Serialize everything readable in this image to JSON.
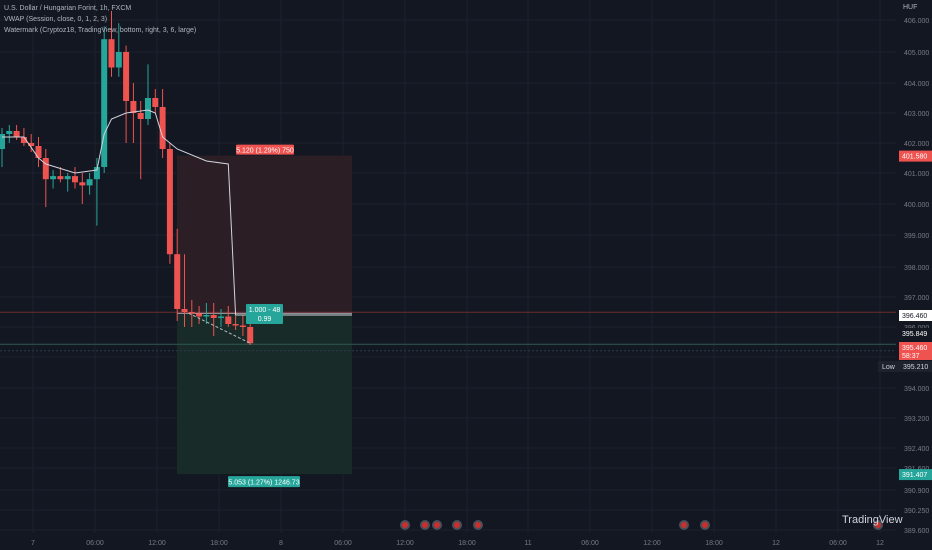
{
  "legend": {
    "symbol": "U.S. Dollar / Hungarian Forint, 1h, FXCM",
    "vwap": "VWAP (Session, close, 0, 1, 2, 3)",
    "watermark_ind": "Watermark (Cryptoz18, TradingView, bottom, right, 3, 6, large)"
  },
  "currency": "HUF",
  "brand": "TradingView",
  "colors": {
    "background": "#131722",
    "up": "#26a69a",
    "down": "#ef5350",
    "vwap": "#d1d4dc",
    "stop_zone": "#2b1f25",
    "target_zone": "#182b29",
    "low_label": "#1e222d"
  },
  "chart_data": {
    "type": "candlestick",
    "symbol": "USDHUF",
    "timeframe": "1h",
    "ylim": [
      389.6,
      406.2
    ],
    "y_ticks": [
      "406.000",
      "405.000",
      "404.000",
      "403.000",
      "402.000",
      "401.000",
      "400.000",
      "399.000",
      "398.000",
      "397.000",
      "396.000",
      "395.000",
      "394.000",
      "393.200",
      "392.400",
      "391.600",
      "390.900",
      "390.250",
      "389.600"
    ],
    "x_ticks": [
      "7",
      "06:00",
      "12:00",
      "18:00",
      "8",
      "06:00",
      "12:00",
      "18:00",
      "11",
      "06:00",
      "12:00",
      "18:00",
      "12",
      "06:00",
      "12"
    ],
    "candles": [
      {
        "o": 401.8,
        "h": 402.5,
        "l": 401.2,
        "c": 402.3
      },
      {
        "o": 402.3,
        "h": 402.6,
        "l": 402.0,
        "c": 402.4
      },
      {
        "o": 402.4,
        "h": 402.6,
        "l": 402.1,
        "c": 402.2
      },
      {
        "o": 402.2,
        "h": 402.5,
        "l": 401.9,
        "c": 402.0
      },
      {
        "o": 402.0,
        "h": 402.3,
        "l": 401.7,
        "c": 401.9
      },
      {
        "o": 401.9,
        "h": 402.2,
        "l": 401.2,
        "c": 401.5
      },
      {
        "o": 401.5,
        "h": 401.8,
        "l": 399.9,
        "c": 400.8
      },
      {
        "o": 400.8,
        "h": 401.1,
        "l": 400.5,
        "c": 400.9
      },
      {
        "o": 400.9,
        "h": 401.2,
        "l": 400.7,
        "c": 400.8
      },
      {
        "o": 400.8,
        "h": 401.0,
        "l": 400.4,
        "c": 400.9
      },
      {
        "o": 400.9,
        "h": 401.2,
        "l": 400.5,
        "c": 400.7
      },
      {
        "o": 400.7,
        "h": 401.0,
        "l": 400.0,
        "c": 400.6
      },
      {
        "o": 400.6,
        "h": 401.0,
        "l": 400.3,
        "c": 400.8
      },
      {
        "o": 400.8,
        "h": 401.5,
        "l": 399.3,
        "c": 401.2
      },
      {
        "o": 401.2,
        "h": 405.8,
        "l": 401.0,
        "c": 405.4
      },
      {
        "o": 405.4,
        "h": 406.3,
        "l": 404.2,
        "c": 404.5
      },
      {
        "o": 404.5,
        "h": 405.9,
        "l": 404.2,
        "c": 405.0
      },
      {
        "o": 405.0,
        "h": 405.2,
        "l": 402.0,
        "c": 403.4
      },
      {
        "o": 403.4,
        "h": 404.0,
        "l": 402.0,
        "c": 403.0
      },
      {
        "o": 403.0,
        "h": 403.4,
        "l": 400.8,
        "c": 402.8
      },
      {
        "o": 402.8,
        "h": 404.6,
        "l": 402.6,
        "c": 403.5
      },
      {
        "o": 403.5,
        "h": 403.8,
        "l": 403.0,
        "c": 403.2
      },
      {
        "o": 403.2,
        "h": 403.8,
        "l": 401.5,
        "c": 401.8
      },
      {
        "o": 401.8,
        "h": 402.0,
        "l": 398.1,
        "c": 398.4
      },
      {
        "o": 398.4,
        "h": 399.2,
        "l": 396.2,
        "c": 396.6
      },
      {
        "o": 396.6,
        "h": 398.4,
        "l": 396.0,
        "c": 396.5
      },
      {
        "o": 396.5,
        "h": 396.9,
        "l": 396.0,
        "c": 396.45
      },
      {
        "o": 396.45,
        "h": 396.7,
        "l": 396.1,
        "c": 396.35
      },
      {
        "o": 396.35,
        "h": 396.8,
        "l": 396.1,
        "c": 396.4
      },
      {
        "o": 396.4,
        "h": 396.8,
        "l": 395.7,
        "c": 396.3
      },
      {
        "o": 396.3,
        "h": 396.6,
        "l": 396.0,
        "c": 396.35
      },
      {
        "o": 396.35,
        "h": 396.7,
        "l": 396.0,
        "c": 396.1
      },
      {
        "o": 396.1,
        "h": 396.5,
        "l": 395.9,
        "c": 396.05
      },
      {
        "o": 396.05,
        "h": 396.4,
        "l": 395.7,
        "c": 396.0
      },
      {
        "o": 396.0,
        "h": 396.3,
        "l": 395.4,
        "c": 395.46
      }
    ],
    "vwap": [
      [
        0,
        402.2
      ],
      [
        3,
        402.2
      ],
      [
        5,
        401.5
      ],
      [
        6,
        401.3
      ],
      [
        10,
        401.0
      ],
      [
        13,
        401.1
      ],
      [
        14,
        402.3
      ],
      [
        15,
        402.8
      ],
      [
        17,
        403.0
      ],
      [
        20,
        403.1
      ],
      [
        21,
        403.0
      ],
      [
        22,
        402.2
      ],
      [
        24,
        401.8
      ],
      [
        28,
        401.4
      ],
      [
        31,
        401.3
      ],
      [
        32,
        396.4
      ]
    ],
    "position": {
      "entry": 396.46,
      "stop": 401.58,
      "target": 391.407,
      "stop_label": "5.120 (1.29%) 750",
      "target_label": "5.053 (1.27%) 1246.73",
      "ratio_label_1": "1.000 - 48",
      "ratio_label_2": "0.99"
    },
    "price_labels": {
      "stop": "401.580",
      "entry": "396.460",
      "price1": "395.849",
      "current": "395.460",
      "countdown": "58:37",
      "low_word": "Low",
      "low": "395.210",
      "target": "391.407"
    },
    "marker_count": 9
  }
}
